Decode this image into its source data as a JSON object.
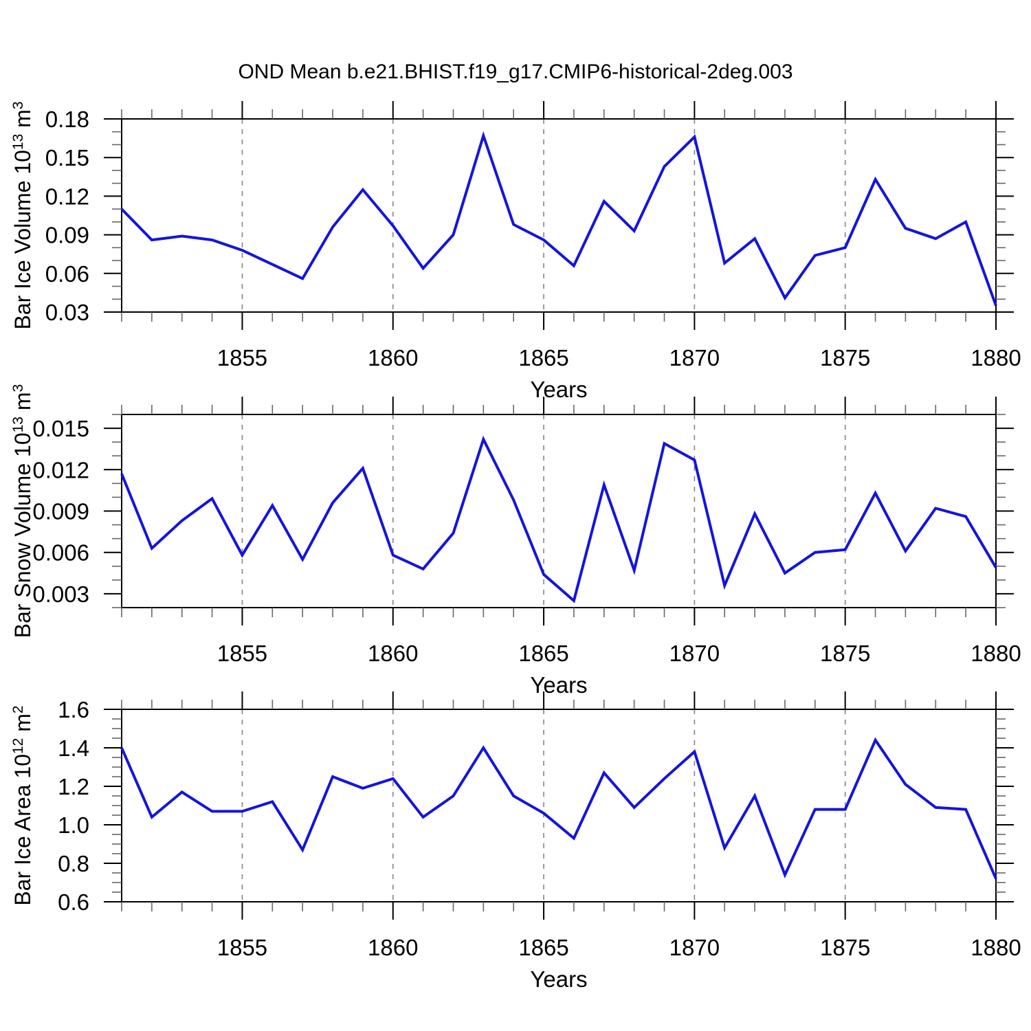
{
  "title": "OND Mean b.e21.BHIST.f19_g17.CMIP6-historical-2deg.003",
  "colors": {
    "line": "#1414dd",
    "frame": "#000000",
    "grid": "#848484",
    "major_tick": "#000000",
    "minor_tick": "#666666",
    "text": "#000000",
    "background": "#ffffff"
  },
  "chart_data": [
    {
      "type": "line",
      "title": "",
      "ylabel": "Bar Ice Volume 10^13 m^3",
      "ylabel_parts": [
        {
          "t": "Bar Ice Volume 10"
        },
        {
          "t": "13",
          "sup": true
        },
        {
          "t": " m"
        },
        {
          "t": "3",
          "sup": true
        }
      ],
      "xlabel": "Years",
      "x": [
        1851,
        1852,
        1853,
        1854,
        1855,
        1856,
        1857,
        1858,
        1859,
        1860,
        1861,
        1862,
        1863,
        1864,
        1865,
        1866,
        1867,
        1868,
        1869,
        1870,
        1871,
        1872,
        1873,
        1874,
        1875,
        1876,
        1877,
        1878,
        1879,
        1880
      ],
      "values": [
        0.11,
        0.086,
        0.089,
        0.086,
        0.078,
        0.067,
        0.056,
        0.096,
        0.125,
        0.097,
        0.064,
        0.09,
        0.167,
        0.098,
        0.086,
        0.066,
        0.116,
        0.093,
        0.143,
        0.166,
        0.068,
        0.087,
        0.041,
        0.074,
        0.08,
        0.133,
        0.095,
        0.087,
        0.1,
        0.035
      ],
      "ylim": [
        0.03,
        0.18
      ],
      "yticks": [
        0.03,
        0.06,
        0.09,
        0.12,
        0.15,
        0.18
      ],
      "ytick_labels": [
        "0.03",
        "0.06",
        "0.09",
        "0.12",
        "0.15",
        "0.18"
      ],
      "yminor_step": 0.01,
      "xlim": [
        1851,
        1880
      ],
      "xticks": [
        1855,
        1860,
        1865,
        1870,
        1875,
        1880
      ],
      "xtick_labels": [
        "1855",
        "1860",
        "1865",
        "1870",
        "1875",
        "1880"
      ],
      "xminor_step": 1,
      "grid_x": [
        1855,
        1860,
        1865,
        1870,
        1875
      ],
      "grid_on": true,
      "legend": "none"
    },
    {
      "type": "line",
      "title": "",
      "ylabel": "Bar Snow Volume 10^13 m^3",
      "ylabel_parts": [
        {
          "t": "Bar Snow Volume 10"
        },
        {
          "t": "13",
          "sup": true
        },
        {
          "t": " m"
        },
        {
          "t": "3",
          "sup": true
        }
      ],
      "xlabel": "Years",
      "x": [
        1851,
        1852,
        1853,
        1854,
        1855,
        1856,
        1857,
        1858,
        1859,
        1860,
        1861,
        1862,
        1863,
        1864,
        1865,
        1866,
        1867,
        1868,
        1869,
        1870,
        1871,
        1872,
        1873,
        1874,
        1875,
        1876,
        1877,
        1878,
        1879,
        1880
      ],
      "values": [
        0.0117,
        0.0063,
        0.0083,
        0.0099,
        0.0058,
        0.0094,
        0.0055,
        0.0096,
        0.0121,
        0.0058,
        0.0048,
        0.0074,
        0.0142,
        0.0098,
        0.0044,
        0.0025,
        0.0109,
        0.0047,
        0.0139,
        0.0127,
        0.0036,
        0.0088,
        0.0045,
        0.006,
        0.0062,
        0.0103,
        0.0061,
        0.0092,
        0.0086,
        0.0049
      ],
      "ylim": [
        0.002,
        0.016
      ],
      "yticks": [
        0.003,
        0.006,
        0.009,
        0.012,
        0.015
      ],
      "ytick_labels": [
        "0.003",
        "0.006",
        "0.009",
        "0.012",
        "0.015"
      ],
      "yminor_step": 0.001,
      "xlim": [
        1851,
        1880
      ],
      "xticks": [
        1855,
        1860,
        1865,
        1870,
        1875,
        1880
      ],
      "xtick_labels": [
        "1855",
        "1860",
        "1865",
        "1870",
        "1875",
        "1880"
      ],
      "xminor_step": 1,
      "grid_x": [
        1855,
        1860,
        1865,
        1870,
        1875
      ],
      "grid_on": true,
      "legend": "none"
    },
    {
      "type": "line",
      "title": "",
      "ylabel": "Bar Ice Area 10^12 m^2",
      "ylabel_parts": [
        {
          "t": "Bar Ice Area 10"
        },
        {
          "t": "12",
          "sup": true
        },
        {
          "t": " m"
        },
        {
          "t": "2",
          "sup": true
        }
      ],
      "xlabel": "Years",
      "x": [
        1851,
        1852,
        1853,
        1854,
        1855,
        1856,
        1857,
        1858,
        1859,
        1860,
        1861,
        1862,
        1863,
        1864,
        1865,
        1866,
        1867,
        1868,
        1869,
        1870,
        1871,
        1872,
        1873,
        1874,
        1875,
        1876,
        1877,
        1878,
        1879,
        1880
      ],
      "values": [
        1.4,
        1.04,
        1.17,
        1.07,
        1.07,
        1.12,
        0.87,
        1.25,
        1.19,
        1.24,
        1.04,
        1.15,
        1.4,
        1.15,
        1.06,
        0.93,
        1.27,
        1.09,
        1.24,
        1.38,
        0.88,
        1.15,
        0.74,
        1.08,
        1.08,
        1.44,
        1.21,
        1.09,
        1.08,
        0.72
      ],
      "ylim": [
        0.6,
        1.6
      ],
      "yticks": [
        0.6,
        0.8,
        1.0,
        1.2,
        1.4,
        1.6
      ],
      "ytick_labels": [
        "0.6",
        "0.8",
        "1.0",
        "1.2",
        "1.4",
        "1.6"
      ],
      "yminor_step": 0.05,
      "xlim": [
        1851,
        1880
      ],
      "xticks": [
        1855,
        1860,
        1865,
        1870,
        1875,
        1880
      ],
      "xtick_labels": [
        "1855",
        "1860",
        "1865",
        "1870",
        "1875",
        "1880"
      ],
      "xminor_step": 1,
      "grid_x": [
        1855,
        1860,
        1865,
        1870,
        1875
      ],
      "grid_on": true,
      "legend": "none"
    }
  ]
}
